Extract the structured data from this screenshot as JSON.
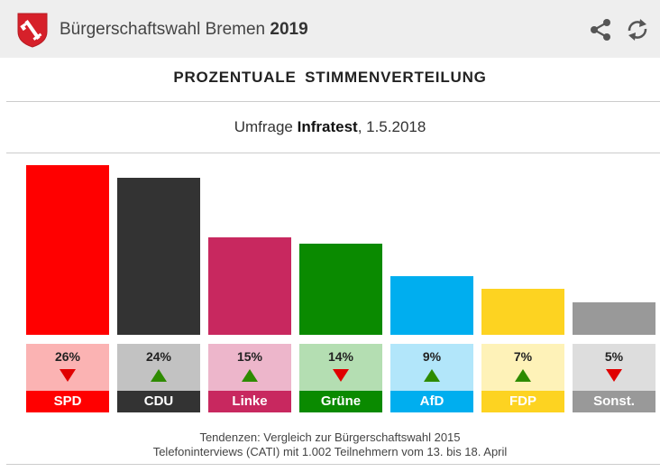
{
  "header": {
    "title_main": "Bürgerschaftswahl Bremen",
    "title_year": "2019",
    "logo_icon": "bremen-coat-of-arms-icon",
    "share_icon": "share-icon",
    "refresh_icon": "refresh-icon"
  },
  "chart_data": {
    "type": "bar",
    "title": "PROZENTUALE  STIMMENVERTEILUNG",
    "subtitle_prefix": "Umfrage",
    "subtitle_pollster": "Infratest",
    "subtitle_date": ", 1.5.2018",
    "categories": [
      "SPD",
      "CDU",
      "Linke",
      "Grüne",
      "AfD",
      "FDP",
      "Sonst."
    ],
    "values": [
      26,
      24,
      15,
      14,
      9,
      7,
      5
    ],
    "value_labels": [
      "26%",
      "24%",
      "15%",
      "14%",
      "9%",
      "7%",
      "5%"
    ],
    "trends": [
      "down",
      "up",
      "up",
      "down",
      "up",
      "up",
      "down"
    ],
    "colors": [
      "#ff0000",
      "#333333",
      "#c8285f",
      "#0a8a00",
      "#00aeef",
      "#fdd321",
      "#999999"
    ],
    "light_colors": [
      "#fbb3b3",
      "#c2c2c2",
      "#edb6cb",
      "#b4deb2",
      "#b2e6fa",
      "#fef2b8",
      "#dddddd"
    ],
    "trend_colors": {
      "up": "#2e8b00",
      "down": "#e00000"
    },
    "ylim": [
      0,
      26
    ]
  },
  "footer": {
    "line1": "Tendenzen: Vergleich zur Bürgerschaftswahl 2015",
    "line2": "Telefoninterviews (CATI) mit 1.002 Teilnehmern vom 13. bis 18. April"
  }
}
